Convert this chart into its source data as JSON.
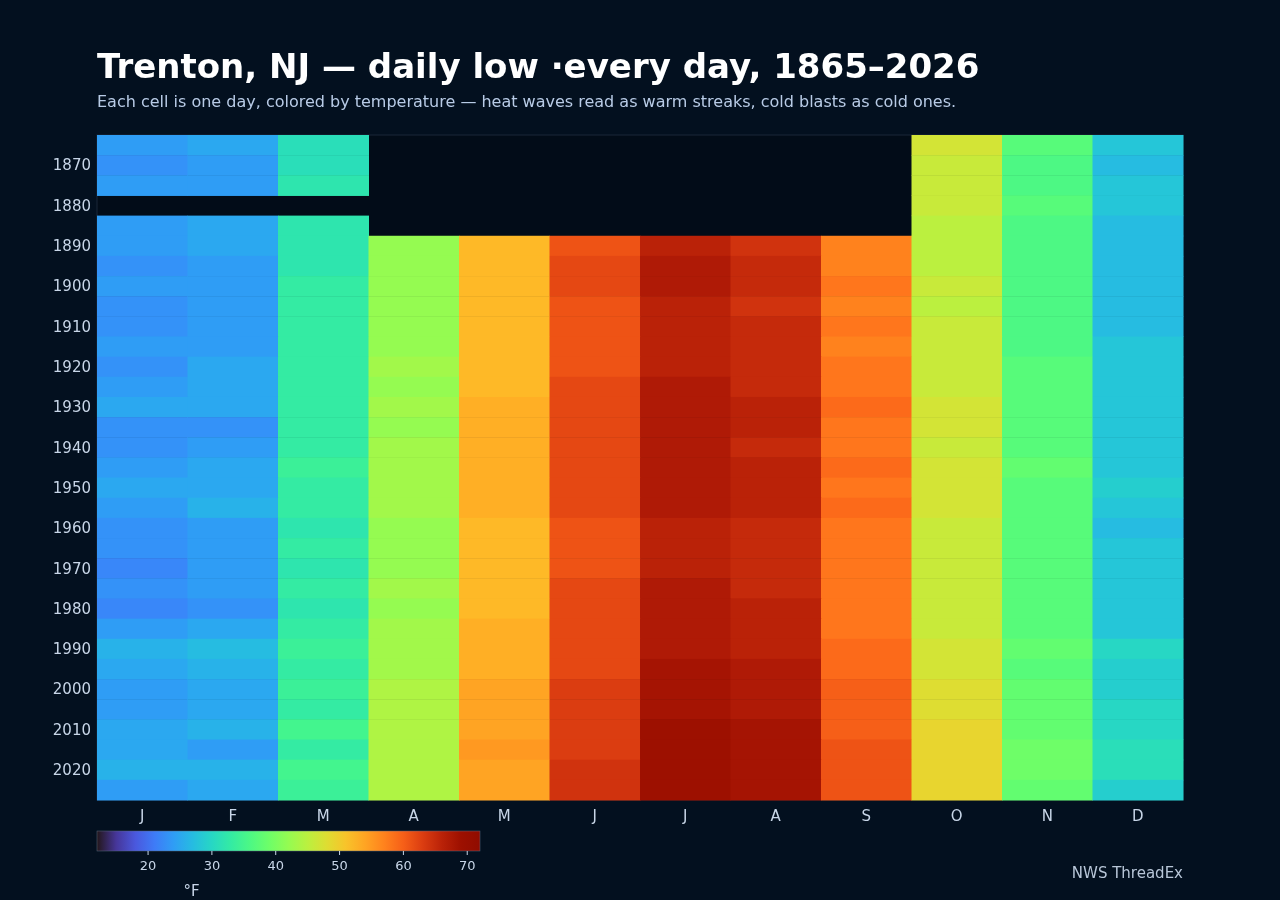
{
  "chart_data": {
    "type": "heatmap",
    "title": "Trenton, NJ — daily low ·every day, 1865–2026",
    "subtitle": "Each cell is one day, colored by temperature — heat waves read as warm streaks, cold blasts as cold ones.",
    "categories": [
      "J",
      "F",
      "M",
      "A",
      "M",
      "J",
      "J",
      "A",
      "S",
      "O",
      "N",
      "D"
    ],
    "y_categories": [
      null,
      "1870",
      null,
      "1880",
      null,
      "1890",
      null,
      "1900",
      null,
      "1910",
      null,
      "1920",
      null,
      "1930",
      null,
      "1940",
      null,
      "1950",
      null,
      "1960",
      null,
      "1970",
      null,
      "1980",
      null,
      "1990",
      null,
      "2000",
      null,
      "2010",
      null,
      "2020",
      null
    ],
    "cells": [
      [
        24,
        25,
        31,
        null,
        null,
        null,
        null,
        null,
        null,
        47,
        37,
        28
      ],
      [
        23,
        24,
        31,
        null,
        null,
        null,
        null,
        null,
        null,
        46,
        36,
        27
      ],
      [
        24,
        24,
        32,
        null,
        null,
        null,
        null,
        null,
        null,
        46,
        36,
        28
      ],
      [
        null,
        null,
        null,
        null,
        null,
        null,
        null,
        null,
        null,
        46,
        37,
        28
      ],
      [
        24,
        25,
        32,
        null,
        null,
        null,
        null,
        null,
        null,
        45,
        36,
        27
      ],
      [
        24,
        25,
        32,
        42,
        52,
        61,
        66,
        64,
        57,
        45,
        36,
        27
      ],
      [
        23,
        24,
        32,
        42,
        52,
        62,
        67,
        65,
        57,
        45,
        36,
        27
      ],
      [
        24,
        24,
        33,
        42,
        52,
        62,
        67,
        65,
        58,
        46,
        36,
        27
      ],
      [
        23,
        24,
        33,
        42,
        52,
        61,
        66,
        64,
        57,
        45,
        36,
        27
      ],
      [
        23,
        24,
        33,
        42,
        52,
        61,
        66,
        65,
        58,
        46,
        36,
        27
      ],
      [
        24,
        24,
        33,
        42,
        52,
        61,
        66,
        65,
        57,
        46,
        36,
        28
      ],
      [
        23,
        25,
        33,
        43,
        52,
        61,
        66,
        65,
        58,
        46,
        37,
        28
      ],
      [
        24,
        25,
        33,
        42,
        52,
        62,
        67,
        65,
        58,
        46,
        37,
        28
      ],
      [
        25,
        25,
        33,
        43,
        53,
        62,
        67,
        66,
        59,
        47,
        37,
        28
      ],
      [
        23,
        23,
        33,
        42,
        53,
        62,
        67,
        66,
        58,
        47,
        37,
        28
      ],
      [
        23,
        24,
        33,
        43,
        53,
        62,
        67,
        65,
        58,
        46,
        37,
        28
      ],
      [
        24,
        25,
        34,
        43,
        53,
        62,
        67,
        66,
        59,
        47,
        38,
        28
      ],
      [
        25,
        25,
        33,
        43,
        53,
        62,
        67,
        66,
        58,
        47,
        37,
        29
      ],
      [
        24,
        26,
        33,
        43,
        53,
        62,
        67,
        66,
        59,
        47,
        37,
        28
      ],
      [
        23,
        24,
        32,
        42,
        52,
        61,
        66,
        65,
        58,
        46,
        37,
        27
      ],
      [
        23,
        24,
        33,
        42,
        52,
        61,
        66,
        65,
        58,
        46,
        37,
        28
      ],
      [
        22,
        24,
        32,
        42,
        52,
        61,
        66,
        65,
        58,
        46,
        37,
        28
      ],
      [
        23,
        24,
        33,
        43,
        52,
        62,
        67,
        65,
        58,
        46,
        37,
        28
      ],
      [
        22,
        23,
        32,
        42,
        52,
        62,
        67,
        66,
        58,
        46,
        37,
        28
      ],
      [
        24,
        25,
        33,
        43,
        53,
        62,
        67,
        66,
        58,
        46,
        37,
        28
      ],
      [
        26,
        27,
        34,
        43,
        53,
        62,
        67,
        66,
        59,
        47,
        38,
        30
      ],
      [
        25,
        26,
        33,
        43,
        53,
        62,
        68,
        67,
        59,
        47,
        37,
        29
      ],
      [
        24,
        25,
        34,
        44,
        54,
        63,
        68,
        67,
        60,
        48,
        38,
        29
      ],
      [
        24,
        25,
        33,
        44,
        54,
        63,
        68,
        67,
        60,
        48,
        38,
        30
      ],
      [
        25,
        26,
        35,
        44,
        54,
        63,
        69,
        68,
        60,
        49,
        38,
        30
      ],
      [
        25,
        24,
        33,
        44,
        55,
        63,
        69,
        68,
        61,
        49,
        39,
        31
      ],
      [
        26,
        26,
        35,
        44,
        54,
        64,
        69,
        68,
        61,
        49,
        39,
        31
      ],
      [
        24,
        25,
        34,
        44,
        54,
        64,
        69,
        68,
        61,
        49,
        38,
        29
      ]
    ],
    "clim": [
      12,
      72
    ],
    "cticks": [
      20,
      30,
      40,
      50,
      60,
      70
    ],
    "clabel": "°F",
    "annotations": [
      "NWS ThreadEx"
    ]
  }
}
